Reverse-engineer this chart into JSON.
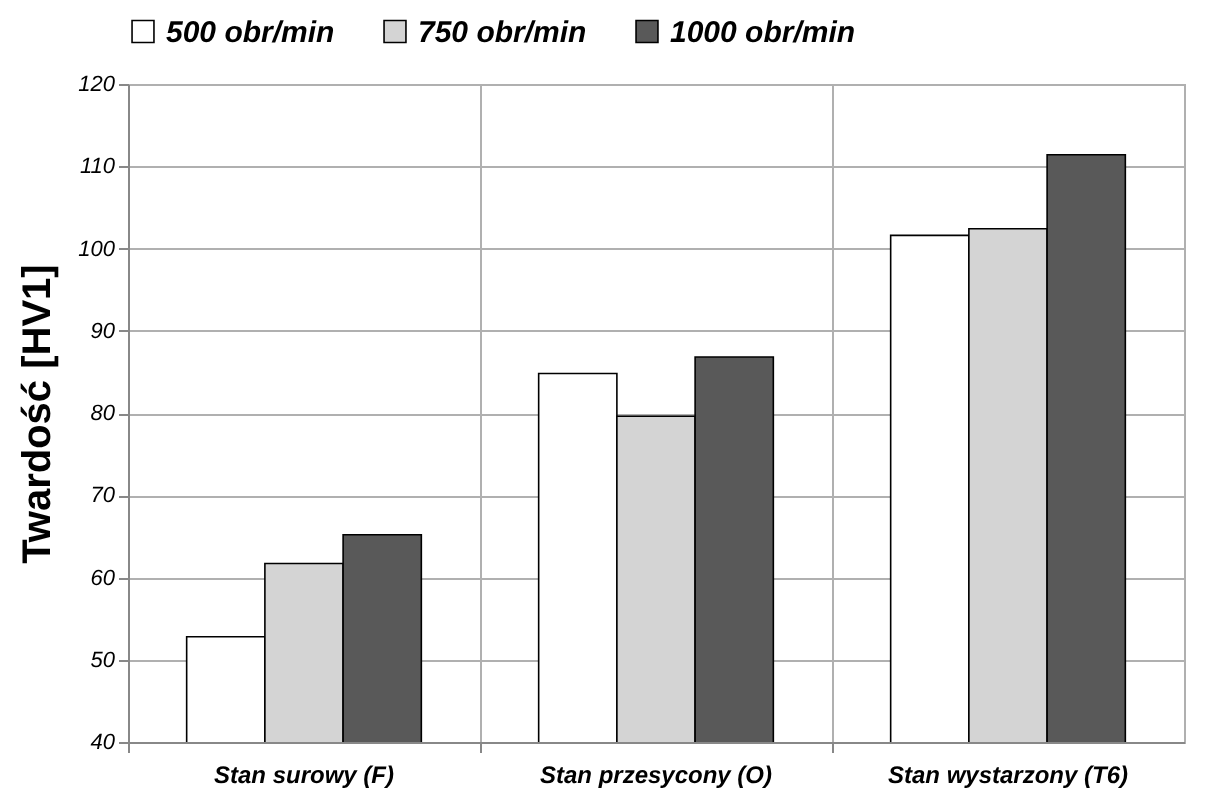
{
  "chart_data": {
    "type": "bar",
    "ylabel": "Twardość [HV1]",
    "categories": [
      "Stan surowy (F)",
      "Stan przesycony (O)",
      "Stan wystarzony  (T6)"
    ],
    "series": [
      {
        "name": "500 obr/min",
        "color": "#ffffff",
        "values": [
          52.8,
          84.8,
          101.6
        ]
      },
      {
        "name": "750 obr/min",
        "color": "#d4d4d4",
        "values": [
          61.7,
          79.6,
          102.4
        ]
      },
      {
        "name": "1000 obr/min",
        "color": "#595959",
        "values": [
          65.2,
          86.8,
          111.4
        ]
      }
    ],
    "ylim": [
      40,
      120
    ],
    "yticks": [
      40,
      50,
      60,
      70,
      80,
      90,
      100,
      110,
      120
    ],
    "grid": true,
    "legend": "top"
  }
}
